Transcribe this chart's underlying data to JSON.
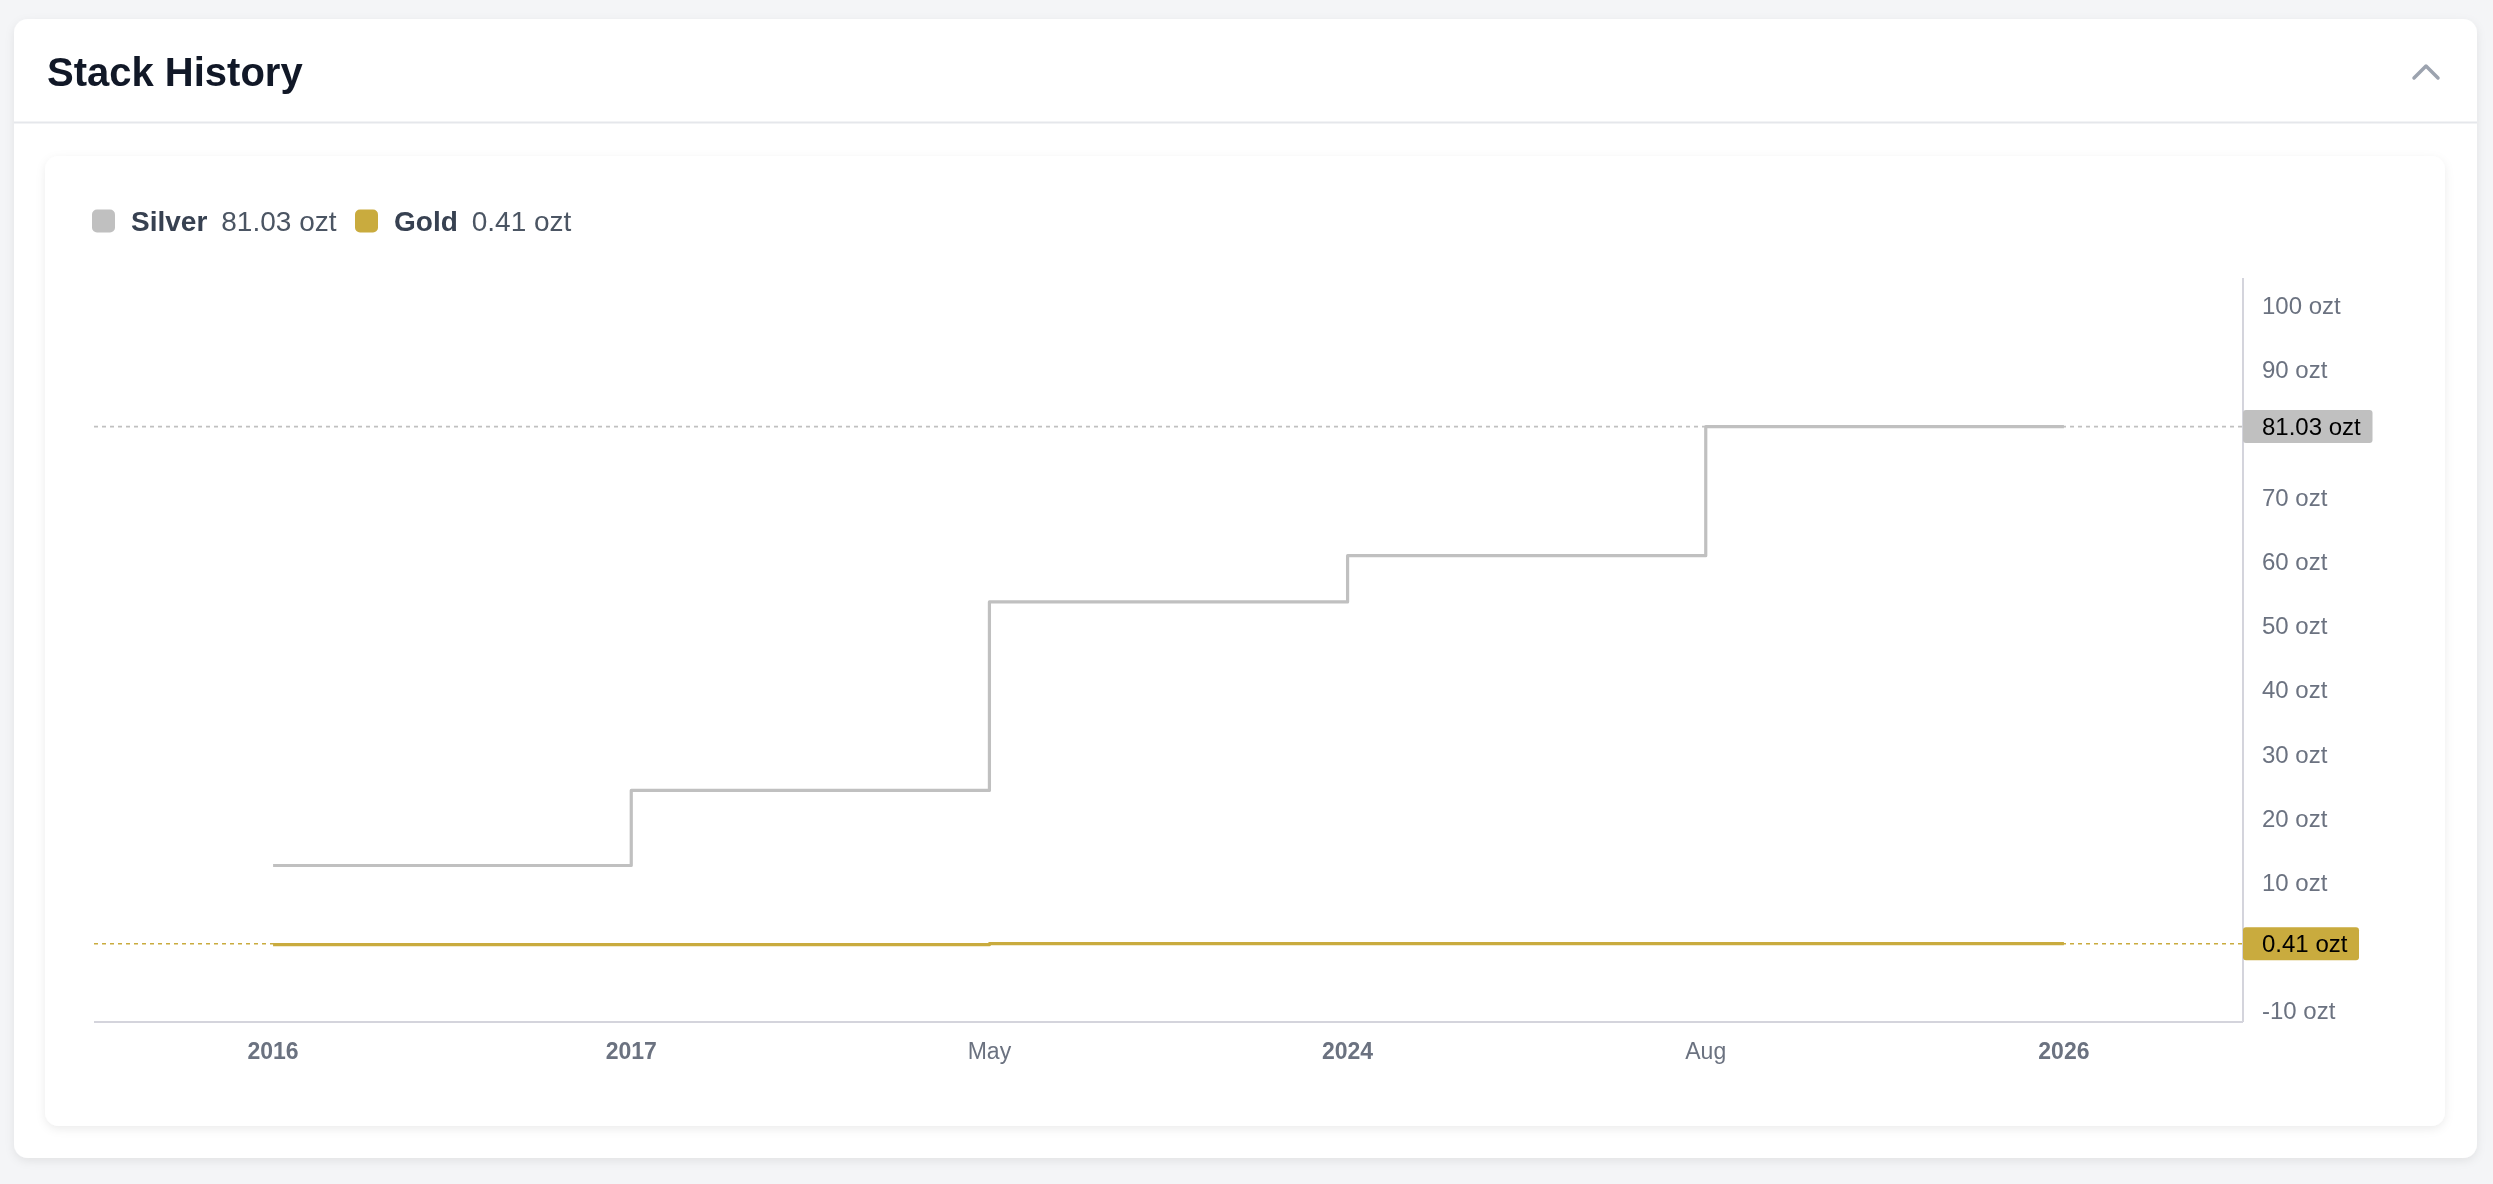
{
  "chart_data": {
    "type": "step",
    "title": "Stack History",
    "categories": [
      "2016",
      "2017",
      "May",
      "2024",
      "Aug",
      "2026"
    ],
    "series": [
      {
        "name": "Silver",
        "color": "#c0c0c0",
        "values": [
          12.6,
          24.3,
          53.7,
          60.9,
          81.03,
          81.03
        ]
      },
      {
        "name": "Gold",
        "color": "#c9ab3e",
        "values": [
          0.25,
          0.25,
          0.41,
          0.41,
          0.41,
          0.41
        ]
      }
    ],
    "ylim": [
      -11.8,
      104.2
    ],
    "yticks": [
      {
        "value": -10,
        "label": "-10 ozt"
      },
      {
        "value": 10,
        "label": "10 ozt"
      },
      {
        "value": 20,
        "label": "20 ozt"
      },
      {
        "value": 30,
        "label": "30 ozt"
      },
      {
        "value": 40,
        "label": "40 ozt"
      },
      {
        "value": 50,
        "label": "50 ozt"
      },
      {
        "value": 60,
        "label": "60 ozt"
      },
      {
        "value": 70,
        "label": "70 ozt"
      },
      {
        "value": 90,
        "label": "90 ozt"
      },
      {
        "value": 100,
        "label": "100 ozt"
      }
    ],
    "ref_lines": [
      {
        "axis": "y",
        "value": 81.03,
        "label": "81.03 ozt",
        "color": "#c0c0c0",
        "line_style": "dashed"
      },
      {
        "axis": "y",
        "value": 0.41,
        "label": "0.41 ozt",
        "color": "#c9ab3e",
        "line_style": "dashed"
      }
    ],
    "legend": "top left"
  }
}
